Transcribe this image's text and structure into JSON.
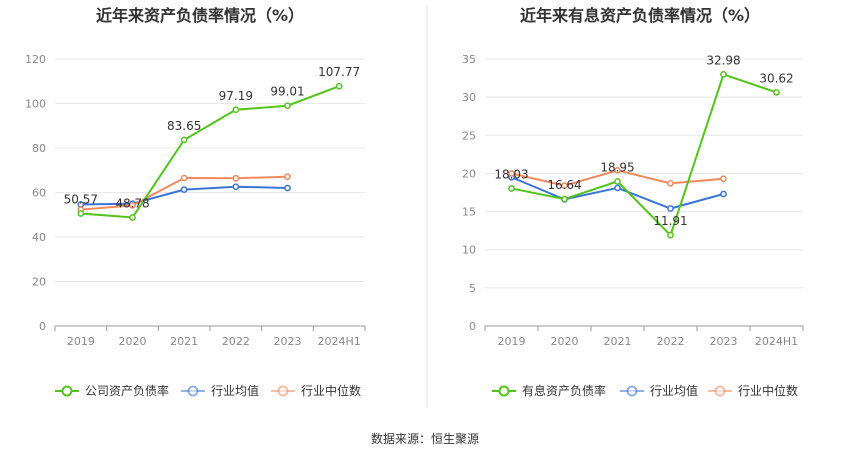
{
  "source": "数据来源：恒生聚源",
  "chart_data": [
    {
      "type": "line",
      "title": "近年来资产负债率情况（%）",
      "categories": [
        "2019",
        "2020",
        "2021",
        "2022",
        "2023",
        "2024H1"
      ],
      "ylim": [
        0,
        120
      ],
      "yticks": [
        0,
        20,
        40,
        60,
        80,
        100,
        120
      ],
      "grid": true,
      "legend_position": "bottom",
      "series": [
        {
          "name": "公司资产负债率",
          "color": "#52c41a",
          "values": [
            50.57,
            48.78,
            83.65,
            97.19,
            99.01,
            107.77
          ],
          "labels": [
            "50.57",
            "48.78",
            "83.65",
            "97.19",
            "99.01",
            "107.77"
          ]
        },
        {
          "name": "行业均值",
          "color": "#3a75d6",
          "values": [
            54.6,
            55.0,
            61.3,
            62.6,
            62.0,
            null
          ]
        },
        {
          "name": "行业中位数",
          "color": "#f08a5d",
          "values": [
            52.3,
            54.2,
            66.5,
            66.4,
            67.1,
            null
          ]
        }
      ]
    },
    {
      "type": "line",
      "title": "近年来有息资产负债率情况（%）",
      "categories": [
        "2019",
        "2020",
        "2021",
        "2022",
        "2023",
        "2024H1"
      ],
      "ylim": [
        0,
        35
      ],
      "yticks": [
        0,
        5,
        10,
        15,
        20,
        25,
        30,
        35
      ],
      "grid": true,
      "legend_position": "bottom",
      "series": [
        {
          "name": "有息资产负债率",
          "color": "#52c41a",
          "values": [
            18.03,
            16.64,
            18.95,
            11.91,
            32.98,
            30.62
          ],
          "labels": [
            "18.03",
            "16.64",
            "18.95",
            "11.91",
            "32.98",
            "30.62"
          ]
        },
        {
          "name": "行业均值",
          "color": "#3a75d6",
          "values": [
            19.5,
            16.6,
            18.1,
            15.4,
            17.3,
            null
          ]
        },
        {
          "name": "行业中位数",
          "color": "#f08a5d",
          "values": [
            20.0,
            18.4,
            20.4,
            18.7,
            19.3,
            null
          ]
        }
      ]
    }
  ]
}
